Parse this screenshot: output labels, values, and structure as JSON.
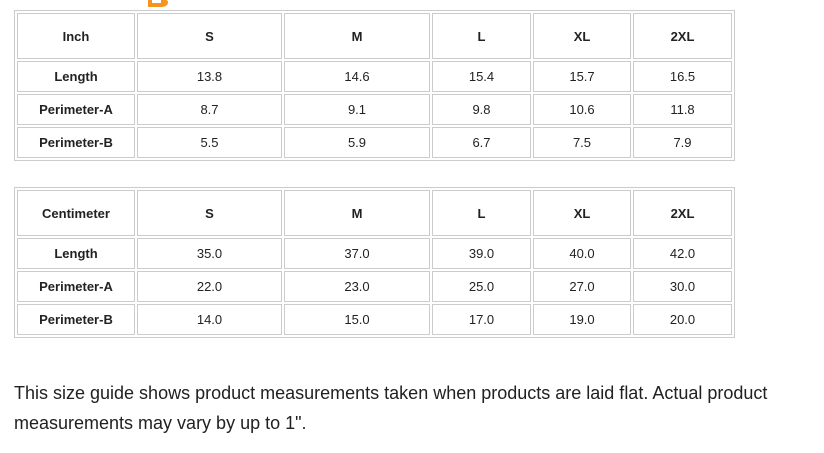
{
  "heading_fragment": {
    "description": "bottom sliver of an orange heading letter cropped at top of screenshot",
    "color": "#F7941E"
  },
  "tables": [
    {
      "unit_label": "Inch",
      "columns": [
        "S",
        "M",
        "L",
        "XL",
        "2XL"
      ],
      "rows": [
        {
          "label": "Length",
          "values": [
            "13.8",
            "14.6",
            "15.4",
            "15.7",
            "16.5"
          ]
        },
        {
          "label": "Perimeter-A",
          "values": [
            "8.7",
            "9.1",
            "9.8",
            "10.6",
            "11.8"
          ]
        },
        {
          "label": "Perimeter-B",
          "values": [
            "5.5",
            "5.9",
            "6.7",
            "7.5",
            "7.9"
          ]
        }
      ]
    },
    {
      "unit_label": "Centimeter",
      "columns": [
        "S",
        "M",
        "L",
        "XL",
        "2XL"
      ],
      "rows": [
        {
          "label": "Length",
          "values": [
            "35.0",
            "37.0",
            "39.0",
            "40.0",
            "42.0"
          ]
        },
        {
          "label": "Perimeter-A",
          "values": [
            "22.0",
            "23.0",
            "25.0",
            "27.0",
            "30.0"
          ]
        },
        {
          "label": "Perimeter-B",
          "values": [
            "14.0",
            "15.0",
            "17.0",
            "19.0",
            "20.0"
          ]
        }
      ]
    }
  ],
  "note": {
    "text": "This size guide shows product measurements taken when products are laid flat. Actual product measurements may vary by up to 1\"."
  },
  "colors": {
    "background": "#ffffff",
    "table_border": "#cccccc",
    "table_text": "#222222",
    "note_text": "#212121",
    "accent_orange": "#F7941E"
  }
}
